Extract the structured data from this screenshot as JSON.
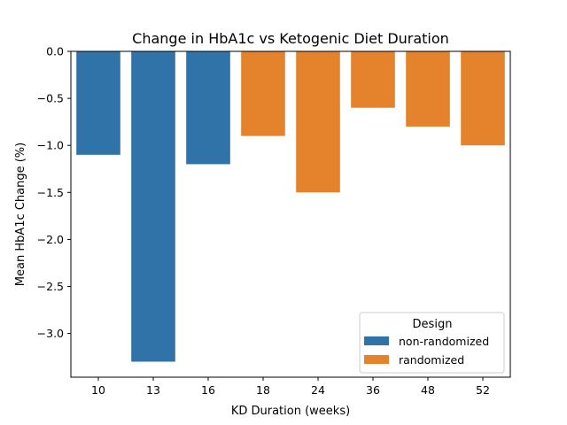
{
  "chart_data": {
    "type": "bar",
    "title": "Change in HbA1c vs Ketogenic Diet Duration",
    "xlabel": "KD Duration (weeks)",
    "ylabel": "Mean HbA1c Change (%)",
    "categories": [
      "10",
      "13",
      "16",
      "18",
      "24",
      "36",
      "48",
      "52"
    ],
    "values": [
      -1.1,
      -3.3,
      -1.2,
      -0.9,
      -1.5,
      -0.6,
      -0.8,
      -1.0
    ],
    "groups": [
      "non-randomized",
      "non-randomized",
      "non-randomized",
      "randomized",
      "randomized",
      "randomized",
      "randomized",
      "randomized"
    ],
    "ylim": [
      -3.465,
      0.0
    ],
    "yticks": [
      0.0,
      -0.5,
      -1.0,
      -1.5,
      -2.0,
      -2.5,
      -3.0
    ],
    "ytick_labels": [
      "0.0",
      "−0.5",
      "−1.0",
      "−1.5",
      "−2.0",
      "−2.5",
      "−3.0"
    ],
    "grid": false,
    "legend": {
      "title": "Design",
      "placement": "lower-right",
      "entries": [
        {
          "name": "non-randomized",
          "color": "#2f73a8"
        },
        {
          "name": "randomized",
          "color": "#e5832d"
        }
      ]
    }
  }
}
